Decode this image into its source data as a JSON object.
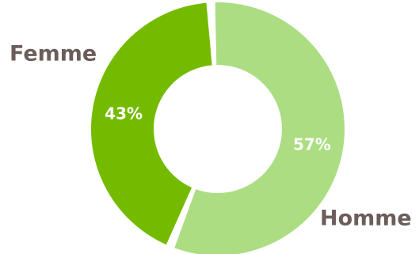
{
  "chart_data": {
    "type": "pie",
    "variant": "donut",
    "categories": [
      "Femme",
      "Homme"
    ],
    "values": [
      43,
      57
    ],
    "value_labels": [
      "43%",
      "57%"
    ],
    "colors": [
      "#74bb00",
      "#acdd83"
    ],
    "label_color": "#6b5e5a",
    "value_label_color": "#ffffff",
    "legend": "none"
  }
}
